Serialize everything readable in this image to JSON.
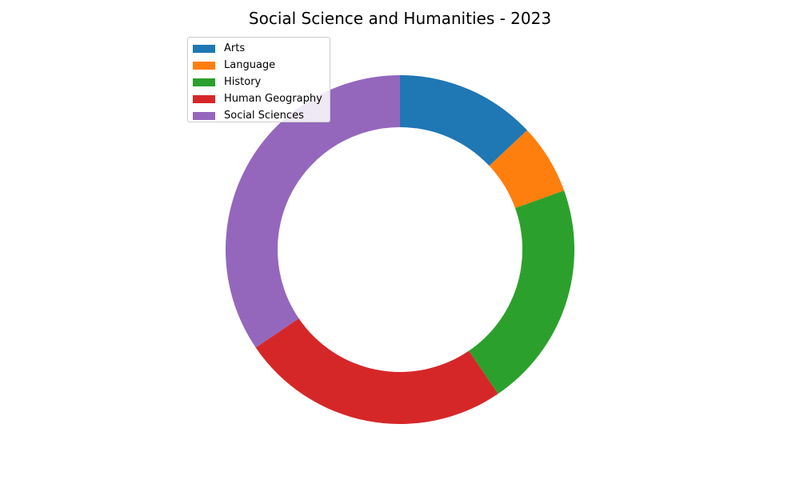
{
  "chart_data": {
    "type": "pie",
    "title": "Social Science and Humanities - 2023",
    "donut": true,
    "start_angle_deg": 90,
    "direction": "clockwise",
    "legend_position": "top-left",
    "categories": [
      "Arts",
      "Language",
      "History",
      "Human Geography",
      "Social Sciences"
    ],
    "values": [
      13,
      6.5,
      21,
      25,
      34.5
    ],
    "colors": [
      "#1f77b4",
      "#ff7f0e",
      "#2ca02c",
      "#d62728",
      "#9467bd"
    ]
  }
}
